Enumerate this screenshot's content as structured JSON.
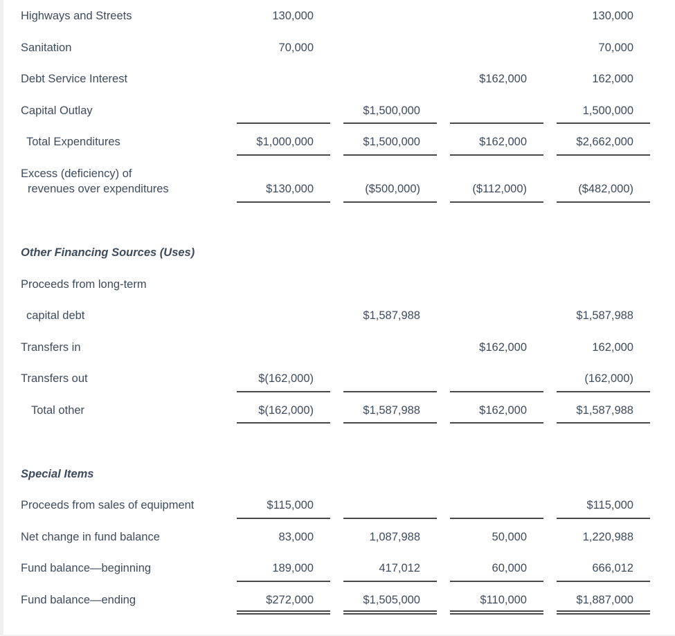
{
  "page": {
    "background": "#ffffff",
    "text_color": "#3e4b5c",
    "rule_color": "#474747",
    "left_strip_color": "#efefef"
  },
  "rows": [
    {
      "label": "Highways and Streets",
      "c1": "130,000",
      "c2": "",
      "c3": "",
      "c4": "130,000"
    },
    {
      "label": "Sanitation",
      "c1": "70,000",
      "c2": "",
      "c3": "",
      "c4": "70,000"
    },
    {
      "label": "Debt Service Interest",
      "c1": "",
      "c2": "",
      "c3": "$162,000",
      "c4": "162,000"
    },
    {
      "label": "Capital Outlay",
      "c1": "",
      "c2": "$1,500,000",
      "c3": "",
      "c4": "1,500,000"
    },
    {
      "label": "Total Expenditures",
      "c1": "$1,000,000",
      "c2": "$1,500,000",
      "c3": "$162,000",
      "c4": "$2,662,000"
    },
    {
      "label": "Excess (deficiency) of",
      "label2": "revenues over expenditures",
      "c1": "$130,000",
      "c2": "($500,000)",
      "c3": "($112,000)",
      "c4": "($482,000)"
    },
    {
      "label": "Other Financing Sources (Uses)"
    },
    {
      "label": "Proceeds from long-term"
    },
    {
      "label": "capital debt",
      "c1": "",
      "c2": "$1,587,988",
      "c3": "",
      "c4": "$1,587,988"
    },
    {
      "label": "Transfers in",
      "c1": "",
      "c2": "",
      "c3": "$162,000",
      "c4": "162,000"
    },
    {
      "label": "Transfers out",
      "c1": "$(162,000)",
      "c2": "",
      "c3": "",
      "c4": "(162,000)"
    },
    {
      "label": "Total other",
      "c1": "$(162,000)",
      "c2": "$1,587,988",
      "c3": "$162,000",
      "c4": "$1,587,988"
    },
    {
      "label": "Special Items"
    },
    {
      "label": "Proceeds from sales of equipment",
      "c1": "$115,000",
      "c2": "",
      "c3": "",
      "c4": "$115,000"
    },
    {
      "label": "Net change in fund balance",
      "c1": "83,000",
      "c2": "1,087,988",
      "c3": "50,000",
      "c4": "1,220,988"
    },
    {
      "label": "Fund balance—beginning",
      "c1": "189,000",
      "c2": "417,012",
      "c3": "60,000",
      "c4": "666,012"
    },
    {
      "label": "Fund balance—ending",
      "c1": "$272,000",
      "c2": "$1,505,000",
      "c3": "$110,000",
      "c4": "$1,887,000"
    }
  ]
}
